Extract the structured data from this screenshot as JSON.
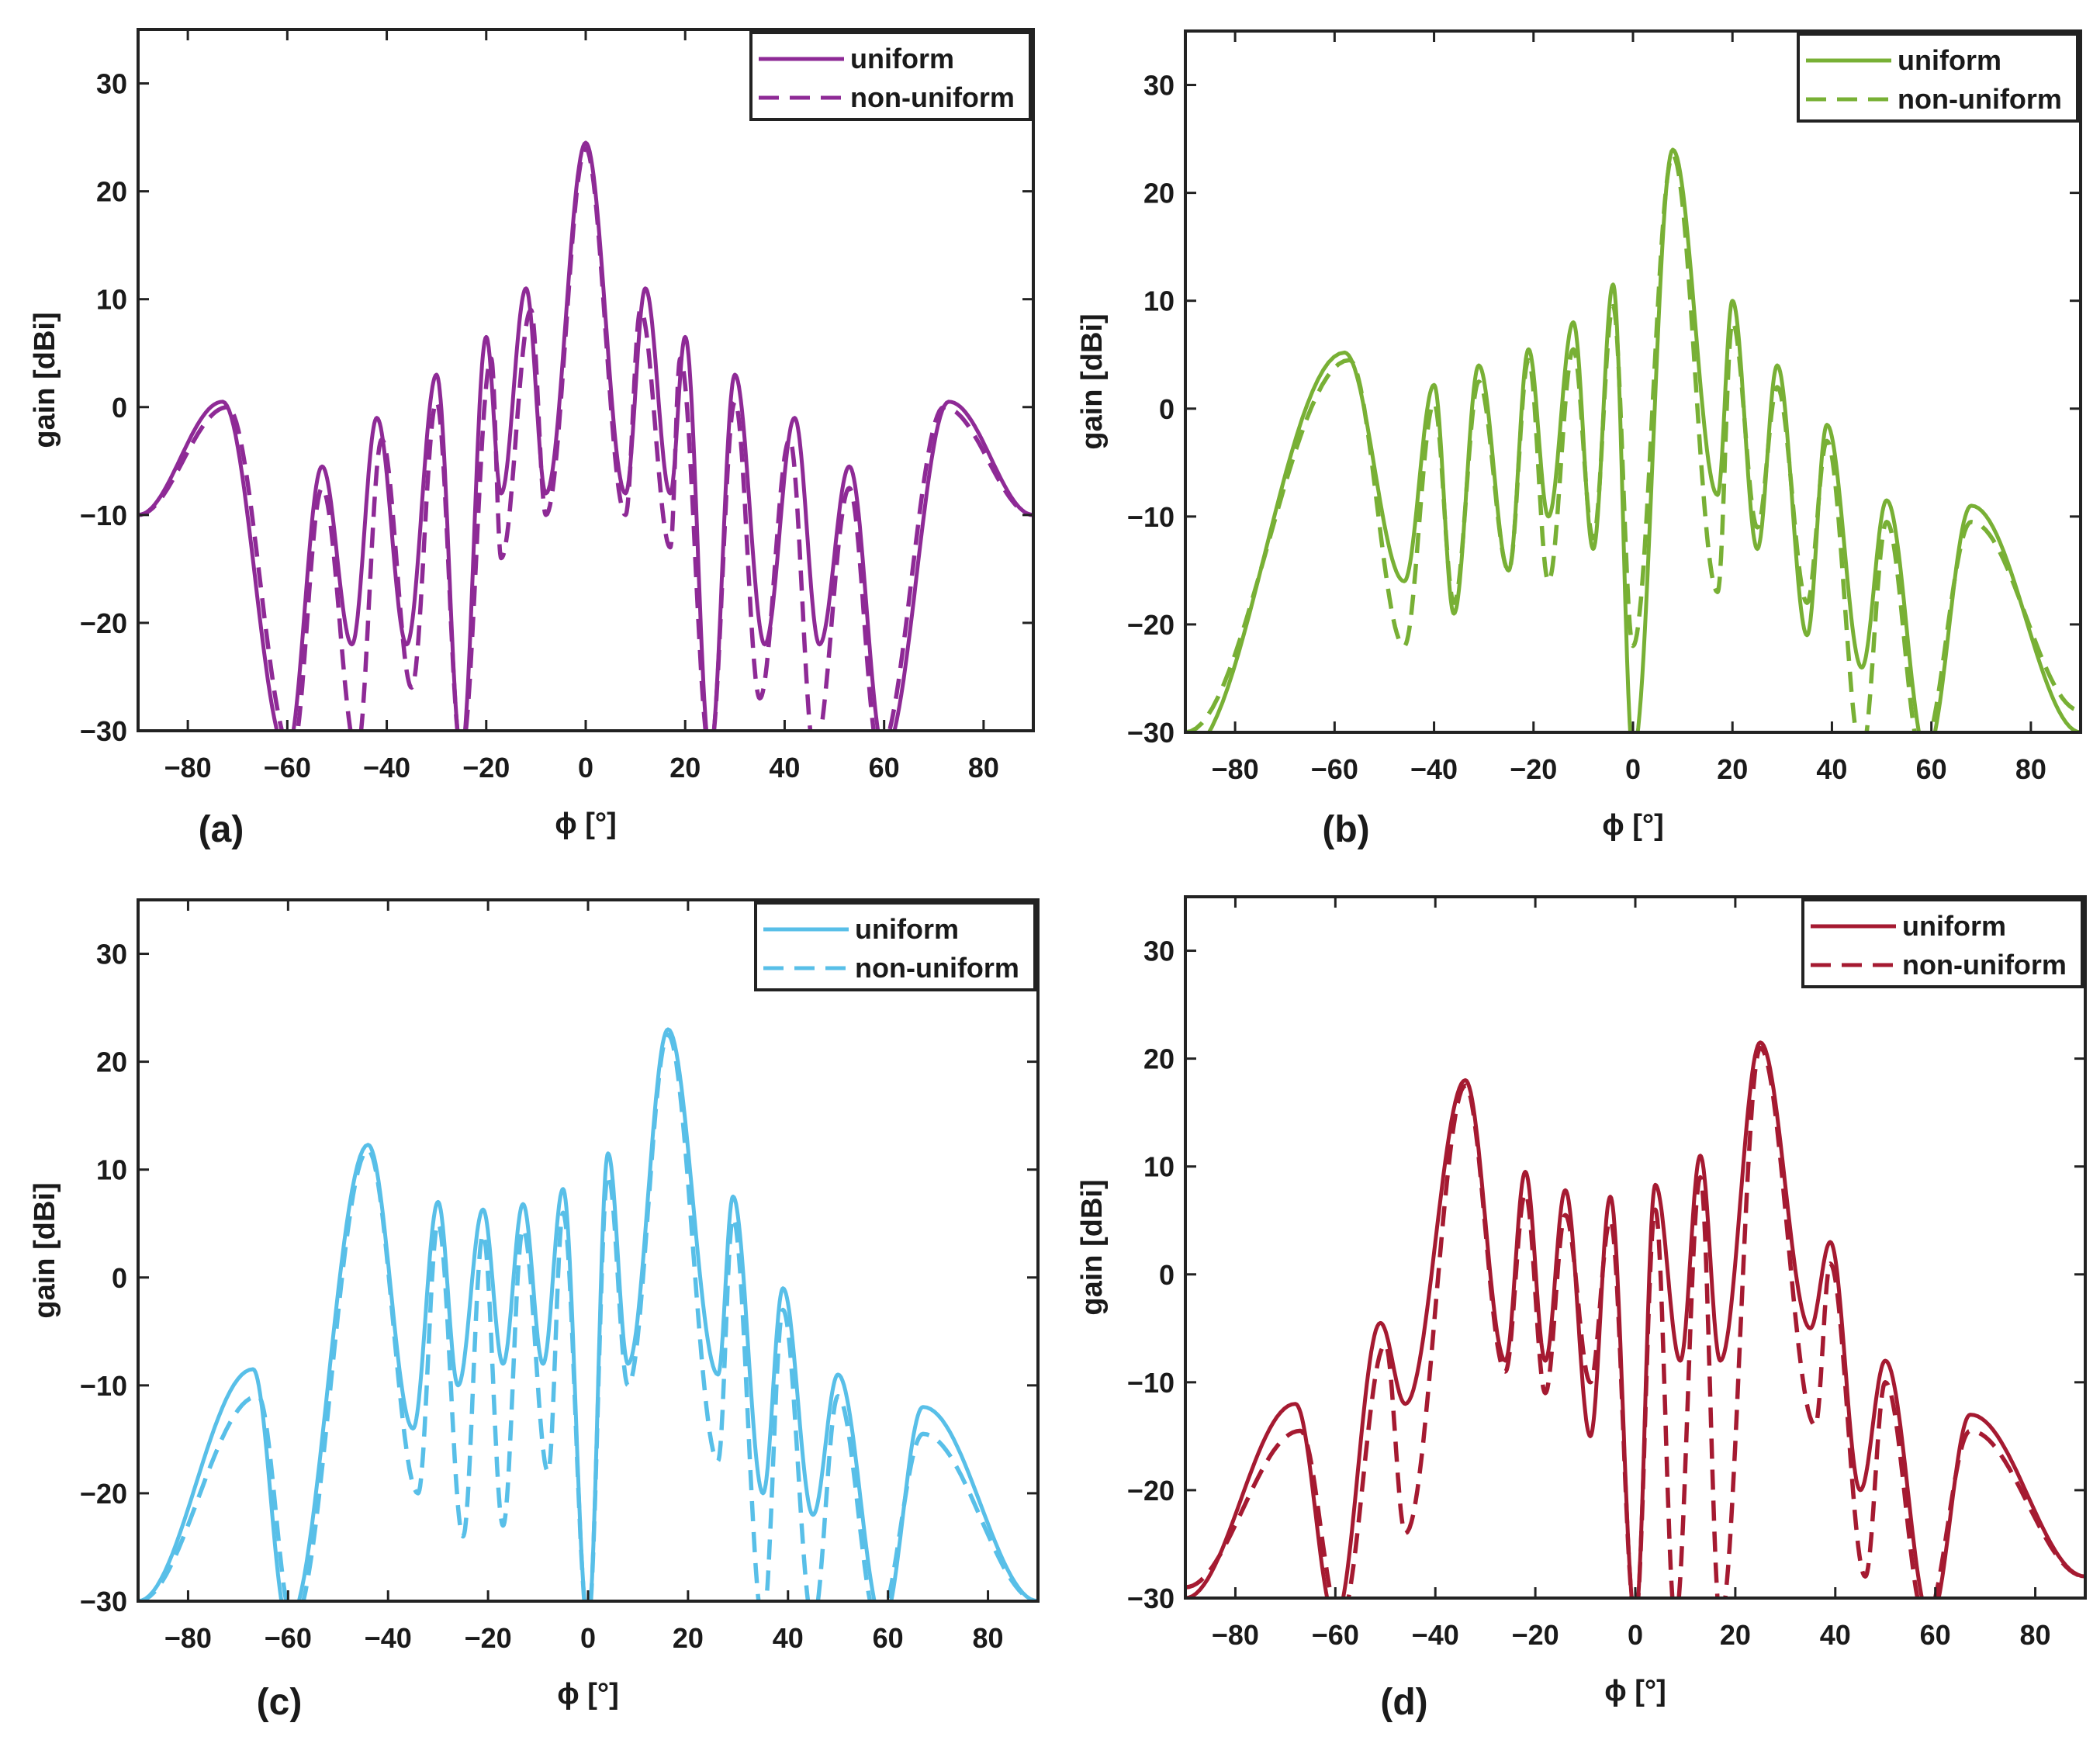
{
  "figure": {
    "legend_labels": [
      "uniform",
      "non-uniform"
    ],
    "legend_position": "top-right"
  },
  "chart_data": [
    {
      "panel": "(a)",
      "type": "line",
      "xlabel": "ϕ [°]",
      "ylabel": "gain [dBi]",
      "xlim": [
        -90,
        90
      ],
      "ylim": [
        -30,
        35
      ],
      "xticks": [
        -80,
        -60,
        -40,
        -20,
        0,
        20,
        40,
        60,
        80
      ],
      "yticks": [
        -30,
        -20,
        -10,
        0,
        10,
        20,
        30
      ],
      "color": "#8e2a96",
      "series": [
        {
          "name": "uniform",
          "style": "solid",
          "main_lobe": {
            "x": 0,
            "y": 24.5
          },
          "side_lobes": [
            [
              -73,
              0.5
            ],
            [
              -53,
              -5.5
            ],
            [
              -42,
              -1.0
            ],
            [
              -30,
              3.0
            ],
            [
              -20,
              6.5
            ],
            [
              -12,
              11.0
            ],
            [
              12,
              11.0
            ],
            [
              20,
              6.5
            ],
            [
              30,
              3.0
            ],
            [
              42,
              -1.0
            ],
            [
              53,
              -5.5
            ],
            [
              73,
              0.5
            ]
          ],
          "nulls": [
            [
              -60,
              -32
            ],
            [
              -47,
              -22
            ],
            [
              -36,
              -22
            ],
            [
              -25,
              -32
            ],
            [
              -17,
              -8
            ],
            [
              -8,
              -8
            ],
            [
              8,
              -8
            ],
            [
              17,
              -8
            ],
            [
              25,
              -32
            ],
            [
              36,
              -22
            ],
            [
              47,
              -22
            ],
            [
              60,
              -32
            ]
          ],
          "edges": [
            -10,
            -10
          ]
        },
        {
          "name": "non-uniform",
          "style": "dashed",
          "main_lobe": {
            "x": 0,
            "y": 24.0
          },
          "side_lobes": [
            [
              -72,
              0.0
            ],
            [
              -53,
              -7.5
            ],
            [
              -41,
              -3.0
            ],
            [
              -30,
              0.5
            ],
            [
              -19,
              4.5
            ],
            [
              -11,
              9.0
            ],
            [
              11,
              9.0
            ],
            [
              19,
              4.5
            ],
            [
              30,
              0.5
            ],
            [
              41,
              -3.0
            ],
            [
              53,
              -7.5
            ],
            [
              72,
              0.0
            ]
          ],
          "nulls": [
            [
              -59,
              -32
            ],
            [
              -46,
              -32
            ],
            [
              -35,
              -26
            ],
            [
              -25,
              -32
            ],
            [
              -17,
              -14
            ],
            [
              -8,
              -10
            ],
            [
              8,
              -10
            ],
            [
              17,
              -13
            ],
            [
              25,
              -32
            ],
            [
              35,
              -27
            ],
            [
              46,
              -32
            ],
            [
              59,
              -32
            ]
          ],
          "edges": [
            -10,
            -10
          ]
        }
      ]
    },
    {
      "panel": "(b)",
      "type": "line",
      "xlabel": "ϕ [°]",
      "ylabel": "gain [dBi]",
      "xlim": [
        -90,
        90
      ],
      "ylim": [
        -30,
        35
      ],
      "xticks": [
        -80,
        -60,
        -40,
        -20,
        0,
        20,
        40,
        60,
        80
      ],
      "yticks": [
        -30,
        -20,
        -10,
        0,
        10,
        20,
        30
      ],
      "color": "#78b035",
      "series": [
        {
          "name": "uniform",
          "style": "solid",
          "main_lobe": {
            "x": 8,
            "y": 24.0
          },
          "side_lobes": [
            [
              -58,
              5.2
            ],
            [
              -40,
              2.2
            ],
            [
              -31,
              4.0
            ],
            [
              -21,
              5.5
            ],
            [
              -12,
              8.0
            ],
            [
              -4,
              11.5
            ],
            [
              20,
              10.0
            ],
            [
              29,
              4.0
            ],
            [
              39,
              -1.5
            ],
            [
              51,
              -8.5
            ],
            [
              68,
              -9.0
            ]
          ],
          "nulls": [
            [
              -46,
              -16
            ],
            [
              -36,
              -19
            ],
            [
              -25,
              -15
            ],
            [
              -17,
              -10
            ],
            [
              -8,
              -13
            ],
            [
              0,
              -32
            ],
            [
              17,
              -8
            ],
            [
              25,
              -13
            ],
            [
              35,
              -21
            ],
            [
              46,
              -24
            ],
            [
              59,
              -32
            ]
          ],
          "edges": [
            -32,
            -30
          ]
        },
        {
          "name": "non-uniform",
          "style": "dashed",
          "main_lobe": {
            "x": 8,
            "y": 23.5
          },
          "side_lobes": [
            [
              -57,
              4.5
            ],
            [
              -40,
              0.5
            ],
            [
              -31,
              2.5
            ],
            [
              -21,
              4.5
            ],
            [
              -12,
              5.5
            ],
            [
              -4,
              9.5
            ],
            [
              20,
              8.0
            ],
            [
              29,
              2.0
            ],
            [
              39,
              -3.0
            ],
            [
              51,
              -10.5
            ],
            [
              68,
              -10.5
            ]
          ],
          "nulls": [
            [
              -46,
              -22
            ],
            [
              -36,
              -18
            ],
            [
              -25,
              -15
            ],
            [
              -17,
              -16
            ],
            [
              -8,
              -12
            ],
            [
              0,
              -22
            ],
            [
              17,
              -17
            ],
            [
              25,
              -11
            ],
            [
              35,
              -18
            ],
            [
              46,
              -32
            ],
            [
              58,
              -32
            ]
          ],
          "edges": [
            -30,
            -28
          ]
        }
      ]
    },
    {
      "panel": "(c)",
      "type": "line",
      "xlabel": "ϕ [°]",
      "ylabel": "gain [dBi]",
      "xlim": [
        -90,
        90
      ],
      "ylim": [
        -30,
        35
      ],
      "xticks": [
        -80,
        -60,
        -40,
        -20,
        0,
        20,
        40,
        60,
        80
      ],
      "yticks": [
        -30,
        -20,
        -10,
        0,
        10,
        20,
        30
      ],
      "color": "#58bfe8",
      "series": [
        {
          "name": "uniform",
          "style": "solid",
          "main_lobe": {
            "x": 16,
            "y": 23.0
          },
          "side_lobes": [
            [
              -67,
              -8.5
            ],
            [
              -44,
              12.3
            ],
            [
              -30,
              7.0
            ],
            [
              -21,
              6.3
            ],
            [
              -13,
              6.8
            ],
            [
              -5,
              8.2
            ],
            [
              4,
              11.5
            ],
            [
              29,
              7.5
            ],
            [
              39,
              -1.0
            ],
            [
              50,
              -9.0
            ],
            [
              67,
              -12.0
            ]
          ],
          "nulls": [
            [
              -60,
              -32
            ],
            [
              -35,
              -14
            ],
            [
              -26,
              -10
            ],
            [
              -17,
              -8
            ],
            [
              -9,
              -8
            ],
            [
              0,
              -32
            ],
            [
              8,
              -8
            ],
            [
              26,
              -9
            ],
            [
              35,
              -20
            ],
            [
              45,
              -22
            ],
            [
              59,
              -32
            ]
          ],
          "edges": [
            -30,
            -30
          ]
        },
        {
          "name": "non-uniform",
          "style": "dashed",
          "main_lobe": {
            "x": 16,
            "y": 22.5
          },
          "side_lobes": [
            [
              -66,
              -11.0
            ],
            [
              -44,
              11.8
            ],
            [
              -30,
              5.0
            ],
            [
              -21,
              4.0
            ],
            [
              -13,
              4.5
            ],
            [
              -5,
              6.0
            ],
            [
              4,
              9.5
            ],
            [
              29,
              5.5
            ],
            [
              39,
              -3.0
            ],
            [
              50,
              -11.0
            ],
            [
              67,
              -14.5
            ]
          ],
          "nulls": [
            [
              -59,
              -32
            ],
            [
              -34,
              -20
            ],
            [
              -25,
              -24
            ],
            [
              -17,
              -23
            ],
            [
              -8,
              -18
            ],
            [
              0,
              -32
            ],
            [
              8,
              -10
            ],
            [
              26,
              -17
            ],
            [
              35,
              -32
            ],
            [
              45,
              -32
            ],
            [
              58,
              -32
            ]
          ],
          "edges": [
            -30,
            -30
          ]
        }
      ]
    },
    {
      "panel": "(d)",
      "type": "line",
      "xlabel": "ϕ [°]",
      "ylabel": "gain [dBi]",
      "xlim": [
        -90,
        90
      ],
      "ylim": [
        -30,
        35
      ],
      "xticks": [
        -80,
        -60,
        -40,
        -20,
        0,
        20,
        40,
        60,
        80
      ],
      "yticks": [
        -30,
        -20,
        -10,
        0,
        10,
        20,
        30
      ],
      "color": "#a51a31",
      "series": [
        {
          "name": "uniform",
          "style": "solid",
          "main_lobe": {
            "x": 25,
            "y": 21.5
          },
          "side_lobes": [
            [
              -68,
              -12.0
            ],
            [
              -51,
              -4.5
            ],
            [
              -34,
              18.0
            ],
            [
              -22,
              9.5
            ],
            [
              -14,
              7.8
            ],
            [
              -5,
              7.2
            ],
            [
              4,
              8.3
            ],
            [
              13,
              11.0
            ],
            [
              39,
              3.0
            ],
            [
              50,
              -8.0
            ],
            [
              67,
              -13.0
            ]
          ],
          "nulls": [
            [
              -60,
              -32
            ],
            [
              -46,
              -12
            ],
            [
              -26,
              -8
            ],
            [
              -18,
              -8
            ],
            [
              -9,
              -15
            ],
            [
              0,
              -32
            ],
            [
              9,
              -8
            ],
            [
              17,
              -8
            ],
            [
              35,
              -5
            ],
            [
              45,
              -20
            ],
            [
              59,
              -32
            ]
          ],
          "edges": [
            -30,
            -28
          ]
        },
        {
          "name": "non-uniform",
          "style": "dashed",
          "main_lobe": {
            "x": 25,
            "y": 21.0
          },
          "side_lobes": [
            [
              -67,
              -14.5
            ],
            [
              -50,
              -6.5
            ],
            [
              -34,
              17.5
            ],
            [
              -22,
              7.5
            ],
            [
              -14,
              5.5
            ],
            [
              -5,
              5.0
            ],
            [
              4,
              6.0
            ],
            [
              13,
              9.0
            ],
            [
              39,
              1.0
            ],
            [
              50,
              -10.0
            ],
            [
              67,
              -14.5
            ]
          ],
          "nulls": [
            [
              -59,
              -32
            ],
            [
              -46,
              -24
            ],
            [
              -26,
              -9
            ],
            [
              -18,
              -11
            ],
            [
              -9,
              -10
            ],
            [
              0,
              -32
            ],
            [
              8,
              -32
            ],
            [
              17,
              -32
            ],
            [
              36,
              -14
            ],
            [
              46,
              -28
            ],
            [
              58,
              -32
            ]
          ],
          "edges": [
            -29,
            -28
          ]
        }
      ]
    }
  ]
}
